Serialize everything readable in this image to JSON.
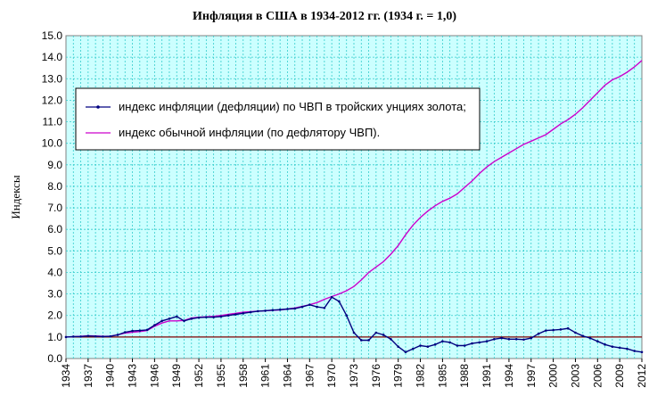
{
  "chart_data": {
    "type": "line",
    "title": "Инфляция в США в 1934-2012 гг. (1934 г. = 1,0)",
    "xlabel": "",
    "ylabel": "Индексы",
    "ylim": [
      0,
      15
    ],
    "yticks": [
      "0.0",
      "1.0",
      "2.0",
      "3.0",
      "4.0",
      "5.0",
      "6.0",
      "7.0",
      "8.0",
      "9.0",
      "10.0",
      "11.0",
      "12.0",
      "13.0",
      "14.0",
      "15.0"
    ],
    "xlim": [
      1934,
      2012
    ],
    "xticks": [
      "1934",
      "1937",
      "1940",
      "1943",
      "1946",
      "1949",
      "1952",
      "1955",
      "1958",
      "1961",
      "1964",
      "1967",
      "1970",
      "1973",
      "1976",
      "1979",
      "1982",
      "1985",
      "1988",
      "1991",
      "1994",
      "1997",
      "2000",
      "2003",
      "2006",
      "2009",
      "2012"
    ],
    "grid": true,
    "legend_position": "upper-left",
    "reference_line": 1.0,
    "plot_background": "#ccffff",
    "grid_color": "#33cccc",
    "series": [
      {
        "name": "индекс инфляции (дефляции) по ЧВП в тройских унциях золота;",
        "color": "#000080",
        "marker": "dot",
        "x": [
          1934,
          1935,
          1936,
          1937,
          1938,
          1939,
          1940,
          1941,
          1942,
          1943,
          1944,
          1945,
          1946,
          1947,
          1948,
          1949,
          1950,
          1951,
          1952,
          1953,
          1954,
          1955,
          1956,
          1957,
          1958,
          1959,
          1960,
          1961,
          1962,
          1963,
          1964,
          1965,
          1966,
          1967,
          1968,
          1969,
          1970,
          1971,
          1972,
          1973,
          1974,
          1975,
          1976,
          1977,
          1978,
          1979,
          1980,
          1981,
          1982,
          1983,
          1984,
          1985,
          1986,
          1987,
          1988,
          1989,
          1990,
          1991,
          1992,
          1993,
          1994,
          1995,
          1996,
          1997,
          1998,
          1999,
          2000,
          2001,
          2002,
          2003,
          2004,
          2005,
          2006,
          2007,
          2008,
          2009,
          2010,
          2011,
          2012
        ],
        "y": [
          1.0,
          1.02,
          1.02,
          1.05,
          1.03,
          1.02,
          1.03,
          1.1,
          1.22,
          1.28,
          1.3,
          1.33,
          1.55,
          1.75,
          1.85,
          1.95,
          1.75,
          1.85,
          1.9,
          1.92,
          1.92,
          1.95,
          2.0,
          2.05,
          2.1,
          2.15,
          2.2,
          2.22,
          2.25,
          2.27,
          2.3,
          2.32,
          2.4,
          2.5,
          2.4,
          2.35,
          2.85,
          2.65,
          2.0,
          1.2,
          0.85,
          0.85,
          1.2,
          1.1,
          0.9,
          0.55,
          0.3,
          0.45,
          0.6,
          0.55,
          0.65,
          0.8,
          0.75,
          0.6,
          0.6,
          0.7,
          0.75,
          0.8,
          0.9,
          0.95,
          0.9,
          0.9,
          0.88,
          0.95,
          1.15,
          1.3,
          1.32,
          1.35,
          1.4,
          1.2,
          1.05,
          0.95,
          0.8,
          0.65,
          0.55,
          0.5,
          0.45,
          0.35,
          0.3
        ]
      },
      {
        "name": "индекс обычной инфляции (по дефлятору ЧВП).",
        "color": "#cc00cc",
        "marker": "none",
        "x": [
          1934,
          1935,
          1936,
          1937,
          1938,
          1939,
          1940,
          1941,
          1942,
          1943,
          1944,
          1945,
          1946,
          1947,
          1948,
          1949,
          1950,
          1951,
          1952,
          1953,
          1954,
          1955,
          1956,
          1957,
          1958,
          1959,
          1960,
          1961,
          1962,
          1963,
          1964,
          1965,
          1966,
          1967,
          1968,
          1969,
          1970,
          1971,
          1972,
          1973,
          1974,
          1975,
          1976,
          1977,
          1978,
          1979,
          1980,
          1981,
          1982,
          1983,
          1984,
          1985,
          1986,
          1987,
          1988,
          1989,
          1990,
          1991,
          1992,
          1993,
          1994,
          1995,
          1996,
          1997,
          1998,
          1999,
          2000,
          2001,
          2002,
          2003,
          2004,
          2005,
          2006,
          2007,
          2008,
          2009,
          2010,
          2011,
          2012
        ],
        "y": [
          1.0,
          1.02,
          1.03,
          1.06,
          1.05,
          1.03,
          1.04,
          1.1,
          1.18,
          1.22,
          1.25,
          1.3,
          1.5,
          1.65,
          1.75,
          1.75,
          1.77,
          1.88,
          1.92,
          1.94,
          1.96,
          2.0,
          2.05,
          2.1,
          2.15,
          2.18,
          2.2,
          2.22,
          2.24,
          2.26,
          2.3,
          2.35,
          2.42,
          2.5,
          2.6,
          2.75,
          2.88,
          3.0,
          3.15,
          3.35,
          3.65,
          4.0,
          4.25,
          4.5,
          4.85,
          5.25,
          5.75,
          6.2,
          6.55,
          6.85,
          7.1,
          7.3,
          7.45,
          7.65,
          7.95,
          8.25,
          8.6,
          8.9,
          9.15,
          9.35,
          9.55,
          9.75,
          9.95,
          10.1,
          10.25,
          10.4,
          10.65,
          10.9,
          11.1,
          11.35,
          11.65,
          12.0,
          12.35,
          12.7,
          12.95,
          13.1,
          13.3,
          13.55,
          13.85
        ]
      }
    ]
  }
}
